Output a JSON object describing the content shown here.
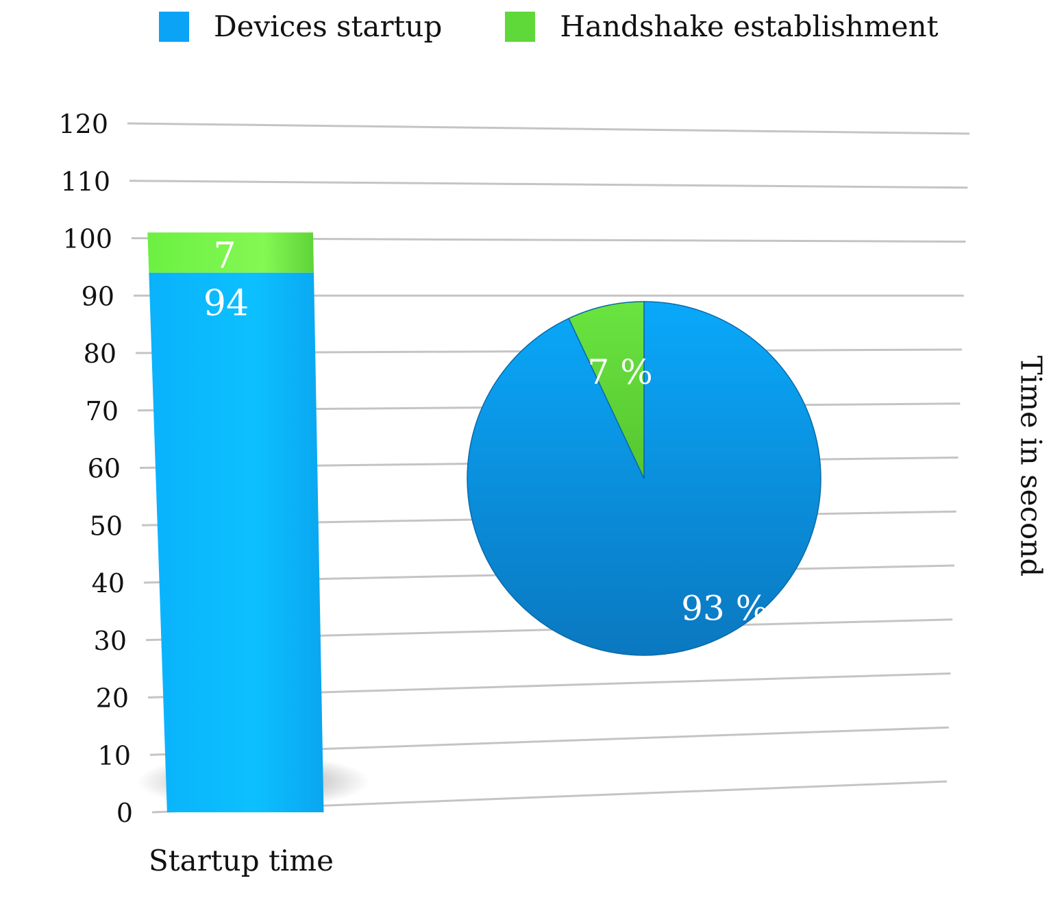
{
  "legend": {
    "items": [
      {
        "label": "Devices startup",
        "color": "#0aa3f5"
      },
      {
        "label": "Handshake establishment",
        "color": "#5fd83a"
      }
    ]
  },
  "chart_data": [
    {
      "type": "bar",
      "stacked": true,
      "categories": [
        "Startup time"
      ],
      "series": [
        {
          "name": "Devices startup",
          "values": [
            94
          ],
          "color": "#0aa3f5",
          "data_label": "94"
        },
        {
          "name": "Handshake establishment",
          "values": [
            7
          ],
          "color": "#7df54d",
          "data_label": "7"
        }
      ],
      "ylabel": "Time in second",
      "ylim": [
        0,
        120
      ],
      "yticks": [
        "0",
        "10",
        "20",
        "30",
        "40",
        "50",
        "60",
        "70",
        "80",
        "90",
        "100",
        "110",
        "120"
      ],
      "grid": true,
      "legend": "top"
    },
    {
      "type": "pie",
      "slices": [
        {
          "name": "Devices startup",
          "value": 93,
          "label": "93 %",
          "color": "#0aa3f5"
        },
        {
          "name": "Handshake establishment",
          "value": 7,
          "label": "7 %",
          "color": "#5fd83a"
        }
      ]
    }
  ]
}
